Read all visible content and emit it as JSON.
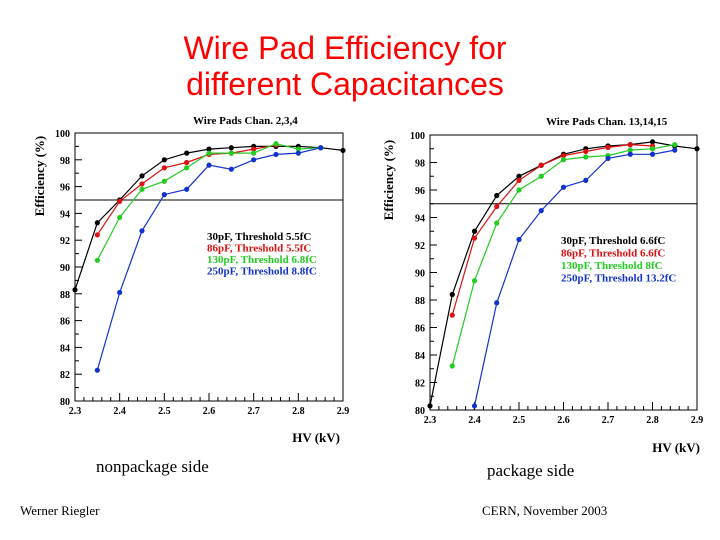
{
  "slide": {
    "title_line1": "Wire Pad Efficiency for",
    "title_line2": "different Capacitances",
    "caption_left": "nonpackage side",
    "caption_right": "package side",
    "footer_left": "Werner Riegler",
    "footer_right": "CERN, November 2003"
  },
  "chart_data": [
    {
      "type": "line",
      "title": "Wire Pads Chan. 2,3,4",
      "xlabel": "HV (kV)",
      "ylabel": "Efficiency (%)",
      "xlim": [
        2.3,
        2.9
      ],
      "ylim": [
        80,
        100
      ],
      "xticks": [
        "2.3",
        "2.4",
        "2.5",
        "2.6",
        "2.7",
        "2.8",
        "2.9"
      ],
      "yticks": [
        "80",
        "82",
        "84",
        "86",
        "88",
        "90",
        "92",
        "94",
        "96",
        "98",
        "100"
      ],
      "reference_line_y": 95,
      "legend_position": "center-right",
      "series": [
        {
          "name": "30pF, Threshold 5.5fC",
          "color": "#000000",
          "x": [
            2.3,
            2.35,
            2.4,
            2.45,
            2.5,
            2.55,
            2.6,
            2.65,
            2.7,
            2.75,
            2.8,
            2.85,
            2.9
          ],
          "y": [
            88.3,
            93.3,
            95.0,
            96.8,
            98.0,
            98.5,
            98.8,
            98.9,
            99.0,
            99.0,
            99.0,
            98.9,
            98.7
          ]
        },
        {
          "name": "86pF, Threshold 5.5fC",
          "color": "#dd1111",
          "x": [
            2.35,
            2.4,
            2.45,
            2.5,
            2.55,
            2.6,
            2.65,
            2.7,
            2.75
          ],
          "y": [
            92.4,
            94.9,
            96.2,
            97.4,
            97.8,
            98.4,
            98.5,
            98.8,
            99.1
          ]
        },
        {
          "name": "130pF, Threshold 6.8fC",
          "color": "#22cc22",
          "x": [
            2.35,
            2.4,
            2.45,
            2.5,
            2.55,
            2.6,
            2.65,
            2.7,
            2.75,
            2.8,
            2.85
          ],
          "y": [
            90.5,
            93.7,
            95.8,
            96.4,
            97.4,
            98.5,
            98.5,
            98.5,
            99.2,
            98.8,
            98.9
          ]
        },
        {
          "name": "250pF, Threshold 8.8fC",
          "color": "#1133cc",
          "x": [
            2.35,
            2.4,
            2.45,
            2.5,
            2.55,
            2.6,
            2.65,
            2.7,
            2.75,
            2.8,
            2.85
          ],
          "y": [
            82.3,
            88.1,
            92.7,
            95.4,
            95.8,
            97.6,
            97.3,
            98.0,
            98.4,
            98.5,
            98.9
          ]
        }
      ]
    },
    {
      "type": "line",
      "title": "Wire Pads Chan. 13,14,15",
      "xlabel": "HV (kV)",
      "ylabel": "Efficiency (%)",
      "xlim": [
        2.3,
        2.9
      ],
      "ylim": [
        80,
        100
      ],
      "xticks": [
        "2.3",
        "2.4",
        "2.5",
        "2.6",
        "2.7",
        "2.8",
        "2.9"
      ],
      "yticks": [
        "80",
        "82",
        "84",
        "86",
        "88",
        "90",
        "92",
        "94",
        "96",
        "98",
        "100"
      ],
      "reference_line_y": 95,
      "legend_position": "center-right",
      "series": [
        {
          "name": "30pF, Threshold 6.6fC",
          "color": "#000000",
          "x": [
            2.3,
            2.35,
            2.4,
            2.45,
            2.5,
            2.55,
            2.6,
            2.65,
            2.7,
            2.75,
            2.8,
            2.85,
            2.9
          ],
          "y": [
            80.3,
            88.4,
            93.0,
            95.6,
            97.0,
            97.8,
            98.6,
            99.0,
            99.2,
            99.3,
            99.5,
            99.2,
            99.0
          ]
        },
        {
          "name": "86pF, Threshold 6.6fC",
          "color": "#dd1111",
          "x": [
            2.35,
            2.4,
            2.45,
            2.5,
            2.55,
            2.6,
            2.65,
            2.7,
            2.75,
            2.8
          ],
          "y": [
            86.9,
            92.5,
            94.8,
            96.7,
            97.8,
            98.5,
            98.8,
            99.1,
            99.3,
            99.2
          ]
        },
        {
          "name": "130pF, Threshold 8fC",
          "color": "#22cc22",
          "x": [
            2.35,
            2.4,
            2.45,
            2.5,
            2.55,
            2.6,
            2.65,
            2.7,
            2.75,
            2.8,
            2.85
          ],
          "y": [
            83.2,
            89.4,
            93.6,
            96.0,
            97.0,
            98.2,
            98.4,
            98.5,
            98.9,
            99.0,
            99.3
          ]
        },
        {
          "name": "250pF, Threshold 13.2fC",
          "color": "#1133cc",
          "x": [
            2.4,
            2.45,
            2.5,
            2.55,
            2.6,
            2.65,
            2.7,
            2.75,
            2.8,
            2.85
          ],
          "y": [
            80.3,
            87.8,
            92.4,
            94.5,
            96.2,
            96.7,
            98.3,
            98.6,
            98.6,
            98.9
          ]
        }
      ]
    }
  ]
}
